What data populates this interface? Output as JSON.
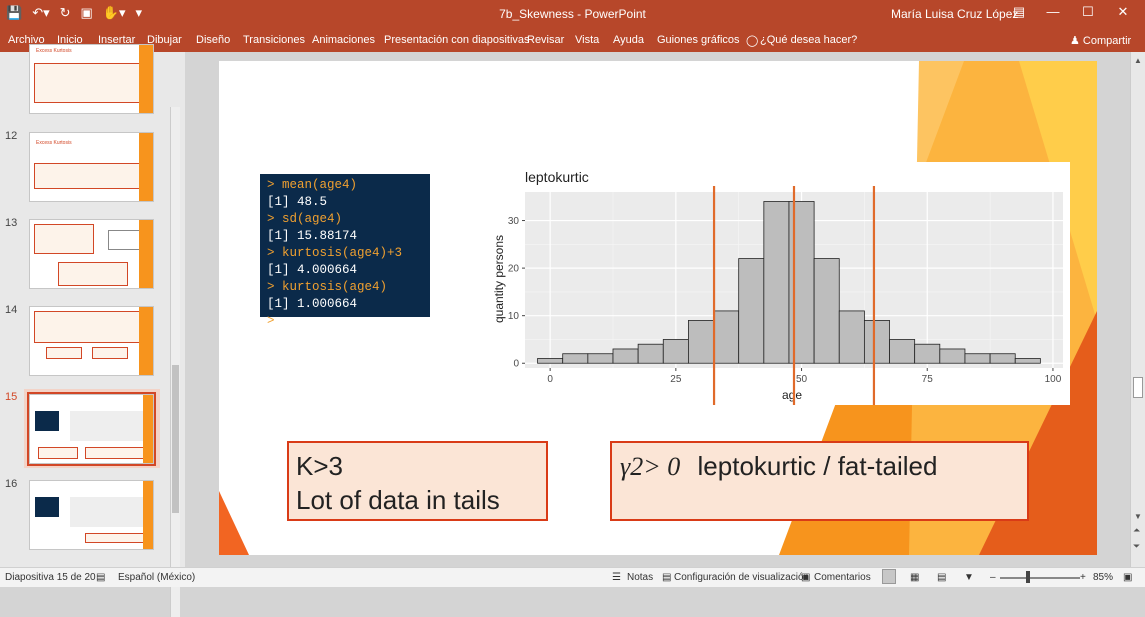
{
  "window": {
    "doc_title": "7b_Skewness  -  PowerPoint",
    "user": "María Luisa Cruz López",
    "qat": [
      "save-icon",
      "undo-icon",
      "redo-icon",
      "present-icon",
      "touch-icon",
      "customize-icon"
    ]
  },
  "ribbon": {
    "tabs": [
      "Archivo",
      "Inicio",
      "Insertar",
      "Dibujar",
      "Diseño",
      "Transiciones",
      "Animaciones",
      "Presentación con diapositivas",
      "Revisar",
      "Vista",
      "Ayuda",
      "Guiones gráficos"
    ],
    "tell_me": "¿Qué desea hacer?",
    "share": "Compartir"
  },
  "thumbnails": [
    {
      "number": "",
      "title": "Excess Kurtosis"
    },
    {
      "number": "12",
      "title": "Excess Kurtosis"
    },
    {
      "number": "13",
      "title": ""
    },
    {
      "number": "14",
      "title": ""
    },
    {
      "number": "15",
      "title": ""
    },
    {
      "number": "16",
      "title": ""
    }
  ],
  "slide": {
    "console": {
      "lines": [
        {
          "kind": "cmd",
          "text": "> mean(age4)"
        },
        {
          "kind": "out",
          "text": "[1] 48.5"
        },
        {
          "kind": "cmd",
          "text": "> sd(age4)"
        },
        {
          "kind": "out",
          "text": "[1] 15.88174"
        },
        {
          "kind": "cmd",
          "text": "> kurtosis(age4)+3"
        },
        {
          "kind": "out",
          "text": "[1] 4.000664"
        },
        {
          "kind": "cmd",
          "text": "> kurtosis(age4)"
        },
        {
          "kind": "out",
          "text": "[1] 1.000664"
        },
        {
          "kind": "cmd",
          "text": ">"
        }
      ]
    },
    "box_left": {
      "line1": "K>3",
      "line2": "Lot of data in tails"
    },
    "box_right": {
      "gamma": "γ2> 0",
      "text": "leptokurtic / fat-tailed"
    }
  },
  "chart_data": {
    "type": "bar",
    "title": "leptokurtic",
    "xlabel": "age",
    "ylabel": "quantity persons",
    "xlim": [
      -5,
      102
    ],
    "ylim": [
      -1,
      36
    ],
    "x_ticks": [
      0,
      25,
      50,
      75,
      100
    ],
    "y_ticks": [
      0,
      10,
      20,
      30
    ],
    "bin_width": 5,
    "bins": [
      {
        "x0": -2.5,
        "count": 1
      },
      {
        "x0": 2.5,
        "count": 2
      },
      {
        "x0": 7.5,
        "count": 2
      },
      {
        "x0": 12.5,
        "count": 3
      },
      {
        "x0": 17.5,
        "count": 4
      },
      {
        "x0": 22.5,
        "count": 5
      },
      {
        "x0": 27.5,
        "count": 9
      },
      {
        "x0": 32.5,
        "count": 11
      },
      {
        "x0": 37.5,
        "count": 22
      },
      {
        "x0": 42.5,
        "count": 34
      },
      {
        "x0": 47.5,
        "count": 34
      },
      {
        "x0": 52.5,
        "count": 22
      },
      {
        "x0": 57.5,
        "count": 11
      },
      {
        "x0": 62.5,
        "count": 9
      },
      {
        "x0": 67.5,
        "count": 5
      },
      {
        "x0": 72.5,
        "count": 4
      },
      {
        "x0": 77.5,
        "count": 3
      },
      {
        "x0": 82.5,
        "count": 2
      },
      {
        "x0": 87.5,
        "count": 2
      },
      {
        "x0": 92.5,
        "count": 1
      }
    ],
    "vlines": [
      32.6,
      48.5,
      64.4
    ],
    "grid": true,
    "colors": {
      "bar": "#bdbdbd",
      "vline": "#e06a2a",
      "panel": "#ebebeb"
    }
  },
  "statusbar": {
    "slide_info": "Diapositiva 15 de 20",
    "language": "Español (México)",
    "notes": "Notas",
    "display_settings": "Configuración de visualización",
    "comments": "Comentarios",
    "zoom": "85%"
  },
  "colors": {
    "accent": "#b7472a",
    "box_border": "#d93b17",
    "box_fill": "#fbe5d6",
    "orange": "#f7941d"
  }
}
